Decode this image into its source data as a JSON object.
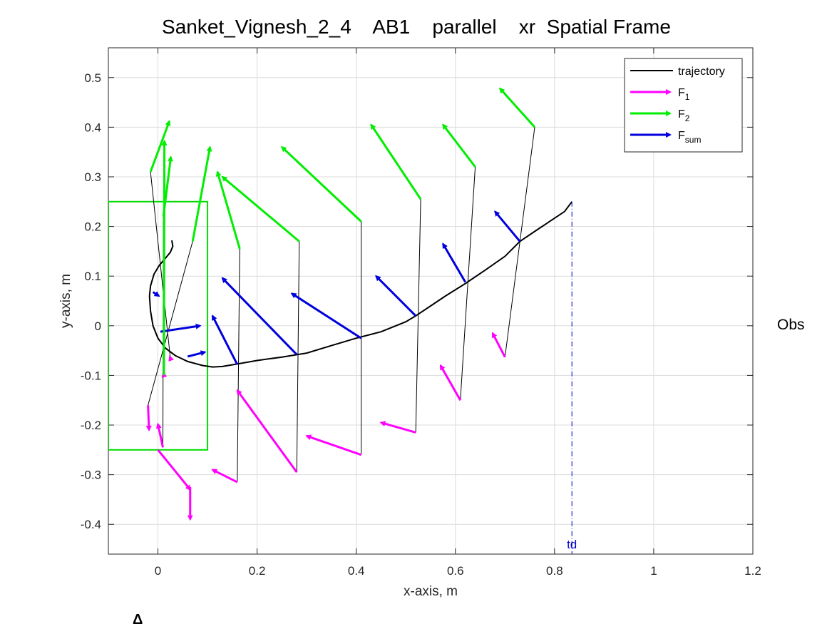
{
  "chart_data": {
    "type": "line",
    "title": "Sanket_Vignesh_2_4    AB1    parallel    xr  Spatial Frame",
    "xlabel": "x-axis, m",
    "ylabel": "y-axis, m",
    "xlim": [
      -0.1,
      1.2
    ],
    "ylim": [
      -0.46,
      0.56
    ],
    "xticks": [
      0,
      0.2,
      0.4,
      0.6,
      0.8,
      1,
      1.2
    ],
    "xtick_labels": [
      "0",
      "0.2",
      "0.4",
      "0.6",
      "0.8",
      "1",
      "1.2"
    ],
    "yticks": [
      -0.4,
      -0.3,
      -0.2,
      -0.1,
      0,
      0.1,
      0.2,
      0.3,
      0.4,
      0.5
    ],
    "ytick_labels": [
      "-0.4",
      "-0.3",
      "-0.2",
      "-0.1",
      "0",
      "0.1",
      "0.2",
      "0.3",
      "0.4",
      "0.5"
    ],
    "grid": true,
    "legend_position": "top-right",
    "legend": [
      {
        "label": "trajectory",
        "sub": "",
        "color": "#000000",
        "kind": "line"
      },
      {
        "label": "F",
        "sub": "1",
        "color": "#ff00ff",
        "kind": "arrow"
      },
      {
        "label": "F",
        "sub": "2",
        "color": "#00ee00",
        "kind": "arrow"
      },
      {
        "label": "F",
        "sub": "sum",
        "color": "#0000dd",
        "kind": "arrow"
      }
    ],
    "colors": {
      "trajectory": "#000000",
      "F1": "#ff00ff",
      "F2": "#00ee00",
      "Fsum": "#0000dd",
      "box": "#00dd00",
      "td": "#0000cc"
    },
    "trajectory": {
      "x": [
        0.028,
        0.03,
        0.025,
        0.015,
        0.003,
        -0.008,
        -0.015,
        -0.017,
        -0.015,
        -0.01,
        0.0,
        0.015,
        0.035,
        0.06,
        0.09,
        0.11,
        0.13,
        0.16,
        0.2,
        0.25,
        0.3,
        0.35,
        0.4,
        0.45,
        0.5,
        0.52,
        0.55,
        0.58,
        0.62,
        0.66,
        0.7,
        0.73,
        0.76,
        0.79,
        0.82,
        0.835
      ],
      "y": [
        0.172,
        0.16,
        0.148,
        0.136,
        0.122,
        0.104,
        0.08,
        0.06,
        0.03,
        0.0,
        -0.025,
        -0.045,
        -0.06,
        -0.072,
        -0.08,
        -0.083,
        -0.082,
        -0.077,
        -0.07,
        -0.063,
        -0.055,
        -0.04,
        -0.025,
        -0.012,
        0.008,
        0.02,
        0.04,
        0.06,
        0.085,
        0.112,
        0.14,
        0.17,
        0.19,
        0.21,
        0.23,
        0.25
      ]
    },
    "boundary_box": {
      "x": [
        -0.1,
        0.1
      ],
      "y": [
        -0.25,
        0.25
      ]
    },
    "td_line": {
      "label": "td",
      "x": 0.835
    },
    "annotation": "Obs",
    "corner_label": "Δ",
    "force_samples": [
      {
        "traj": [
          0.028,
          0.162
        ],
        "f1": [
          0.025,
          -0.065,
          0.024,
          -0.062
        ],
        "f2": [
          -0.015,
          0.31,
          0.023,
          0.412
        ],
        "fsum": [
          -0.01,
          0.068,
          0.002,
          0.06
        ]
      },
      {
        "traj": [
          0.015,
          0.142
        ],
        "f1": [
          0.01,
          -0.245,
          0.0,
          -0.198
        ],
        "f2": [
          0.011,
          0.22,
          0.026,
          0.34
        ],
        "fsum": [
          0.005,
          -0.012,
          0.085,
          0.0
        ]
      },
      {
        "traj": [
          0.0,
          0.14
        ],
        "f1": [
          0.012,
          -0.1,
          0.011,
          -0.095
        ],
        "f2": [
          0.012,
          -0.1,
          0.013,
          0.372
        ],
        "fsum": [
          0.06,
          -0.062,
          0.095,
          -0.053
        ]
      },
      {
        "traj": [
          0.0,
          0.12
        ],
        "f1": [
          -0.02,
          -0.16,
          -0.018,
          -0.21
        ],
        "f2": [
          0.07,
          0.17,
          0.105,
          0.36
        ],
        "fsum": [
          0.16,
          -0.078,
          0.11,
          0.02
        ]
      },
      {
        "traj": [
          0.16,
          -0.077
        ],
        "f1": [
          0.16,
          -0.315,
          0.11,
          -0.29
        ],
        "f2": [
          0.165,
          0.155,
          0.12,
          0.31
        ],
        "fsum": [
          0.28,
          -0.058,
          0.13,
          0.096
        ]
      },
      {
        "traj": [
          0.28,
          -0.057
        ],
        "f1": [
          0.28,
          -0.295,
          0.16,
          -0.13
        ],
        "f2": [
          0.285,
          0.17,
          0.13,
          0.3
        ],
        "fsum": [
          0.41,
          -0.025,
          0.27,
          0.065
        ]
      },
      {
        "traj": [
          0.41,
          -0.025
        ],
        "f1": [
          0.41,
          -0.26,
          0.3,
          -0.222
        ],
        "f2": [
          0.41,
          0.21,
          0.25,
          0.36
        ],
        "fsum": [
          0.52,
          0.02,
          0.44,
          0.1
        ]
      },
      {
        "traj": [
          0.52,
          0.02
        ],
        "f1": [
          0.52,
          -0.215,
          0.45,
          -0.195
        ],
        "f2": [
          0.53,
          0.255,
          0.43,
          0.405
        ],
        "fsum": [
          0.62,
          0.088,
          0.575,
          0.165
        ]
      },
      {
        "traj": [
          0.62,
          0.088
        ],
        "f1": [
          0.61,
          -0.15,
          0.57,
          -0.08
        ],
        "f2": [
          0.64,
          0.32,
          0.575,
          0.405
        ],
        "fsum": [
          0.73,
          0.17,
          0.68,
          0.23
        ]
      },
      {
        "traj": [
          0.73,
          0.17
        ],
        "f1": [
          0.7,
          -0.063,
          0.675,
          -0.015
        ],
        "f2": [
          0.76,
          0.4,
          0.69,
          0.478
        ],
        "fsum": [
          0.73,
          0.17,
          0.73,
          0.17
        ]
      },
      {
        "traj": [
          0.0,
          -0.25
        ],
        "f1": [
          0.0,
          -0.25,
          0.065,
          -0.33
        ],
        "f2": [
          0.0,
          -0.25,
          0.0,
          -0.25
        ],
        "fsum": [
          0.0,
          -0.25,
          0.0,
          -0.25
        ]
      },
      {
        "traj": [
          0.06,
          -0.32
        ],
        "f1": [
          0.065,
          -0.325,
          0.065,
          -0.39
        ],
        "f2": [
          0.065,
          -0.325,
          0.065,
          -0.325
        ],
        "fsum": [
          0.065,
          -0.325,
          0.065,
          -0.325
        ]
      }
    ]
  }
}
